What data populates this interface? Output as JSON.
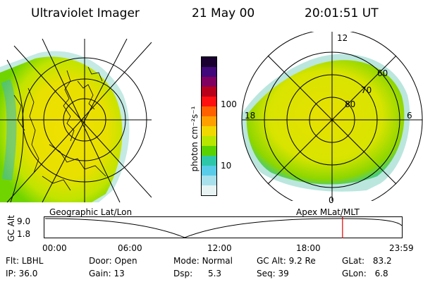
{
  "header": {
    "title": "Ultraviolet Imager",
    "date": "21 May 00",
    "time": "20:01:51 UT"
  },
  "colorbar": {
    "unit": "photon cm⁻²s⁻¹",
    "tick_100": "100",
    "tick_10": "10",
    "colors": [
      "#1a0030",
      "#40087a",
      "#800060",
      "#b8001a",
      "#ff1010",
      "#ff6000",
      "#ffa000",
      "#f0d800",
      "#b8e600",
      "#5ad200",
      "#2ec8a8",
      "#58cce8",
      "#a8e0ec",
      "#e8f4f4"
    ]
  },
  "left_panel": {
    "label": "Geographic Lat/Lon"
  },
  "right_panel": {
    "label": "Apex MLat/MLT",
    "mlt_labels": {
      "top": "12",
      "left": "18",
      "right": "6",
      "bottom": "0"
    },
    "lat_labels": [
      "60",
      "70",
      "80"
    ]
  },
  "timeline": {
    "axis_label": "GC Alt",
    "y_max": "9.0",
    "y_min": "1.8",
    "ticks": [
      "00:00",
      "06:00",
      "12:00",
      "18:00",
      "23:59"
    ],
    "current_time_fraction": 0.834
  },
  "status": {
    "row1": [
      {
        "label": "Flt:",
        "value": "LBHL"
      },
      {
        "label": "Door:",
        "value": "Open"
      },
      {
        "label": "Mode:",
        "value": "Normal"
      },
      {
        "label": "GC Alt:",
        "value": "9.2 Re"
      },
      {
        "label": "GLat:",
        "value": "83.2"
      }
    ],
    "row2": [
      {
        "label": "IP:",
        "value": "36.0"
      },
      {
        "label": "Gain:",
        "value": "13"
      },
      {
        "label": "Dsp:",
        "value": "5.3"
      },
      {
        "label": "Seq:",
        "value": "39"
      },
      {
        "label": "GLon:",
        "value": "6.8"
      }
    ]
  }
}
